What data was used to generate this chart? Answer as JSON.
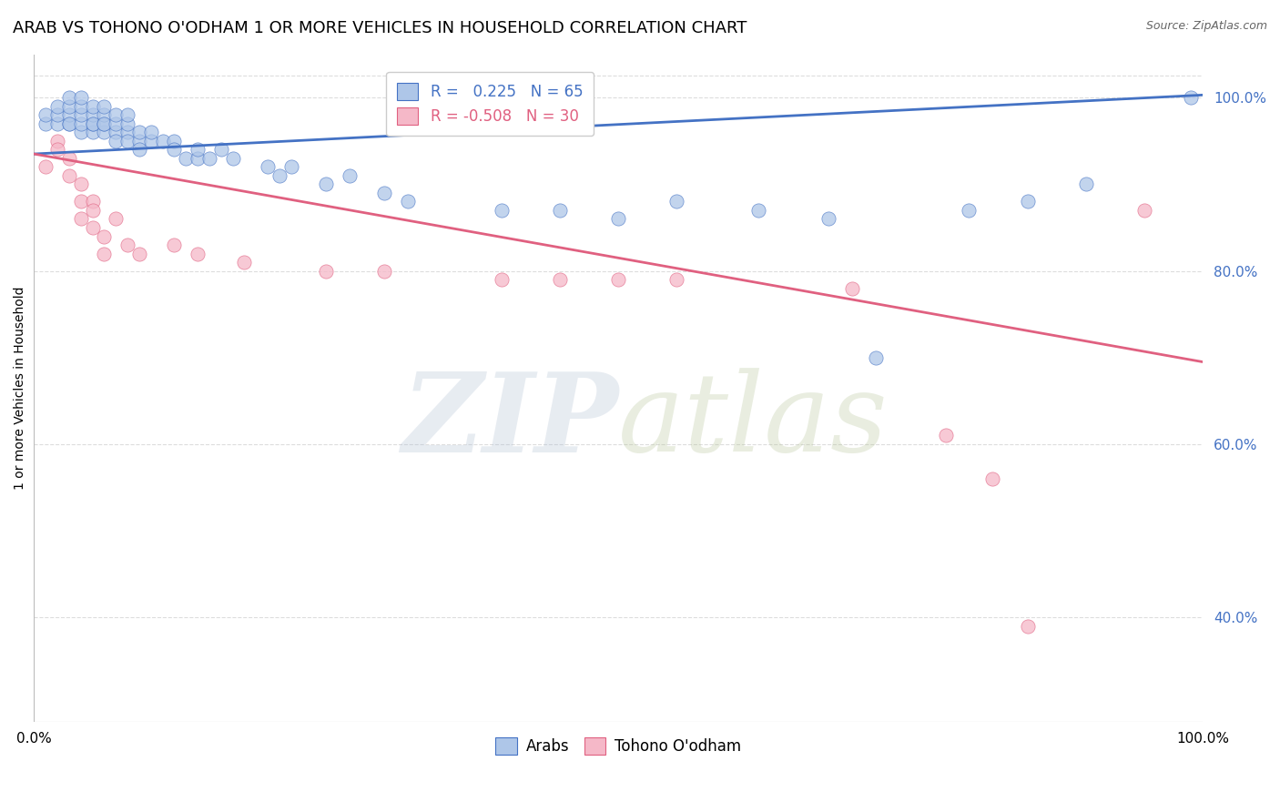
{
  "title": "ARAB VS TOHONO O'ODHAM 1 OR MORE VEHICLES IN HOUSEHOLD CORRELATION CHART",
  "source": "Source: ZipAtlas.com",
  "ylabel": "1 or more Vehicles in Household",
  "xlim": [
    0,
    1
  ],
  "ylim": [
    0.28,
    1.05
  ],
  "ytick_labels": [
    "40.0%",
    "60.0%",
    "80.0%",
    "100.0%"
  ],
  "ytick_values": [
    0.4,
    0.6,
    0.8,
    1.0
  ],
  "legend_r_arab": "R =   0.225",
  "legend_n_arab": "N = 65",
  "legend_r_tohono": "R = -0.508",
  "legend_n_tohono": "N = 30",
  "arab_color": "#aec6e8",
  "tohono_color": "#f5b8c8",
  "arab_line_color": "#4472c4",
  "tohono_line_color": "#e06080",
  "arab_scatter_x": [
    0.01,
    0.01,
    0.02,
    0.02,
    0.02,
    0.03,
    0.03,
    0.03,
    0.03,
    0.03,
    0.04,
    0.04,
    0.04,
    0.04,
    0.04,
    0.05,
    0.05,
    0.05,
    0.05,
    0.05,
    0.06,
    0.06,
    0.06,
    0.06,
    0.06,
    0.07,
    0.07,
    0.07,
    0.07,
    0.08,
    0.08,
    0.08,
    0.08,
    0.09,
    0.09,
    0.09,
    0.1,
    0.1,
    0.11,
    0.12,
    0.12,
    0.13,
    0.14,
    0.14,
    0.15,
    0.16,
    0.17,
    0.2,
    0.21,
    0.22,
    0.25,
    0.27,
    0.3,
    0.32,
    0.4,
    0.45,
    0.5,
    0.55,
    0.62,
    0.68,
    0.72,
    0.8,
    0.85,
    0.9,
    0.99
  ],
  "arab_scatter_y": [
    0.97,
    0.98,
    0.97,
    0.98,
    0.99,
    0.97,
    0.98,
    0.97,
    0.99,
    1.0,
    0.96,
    0.97,
    0.98,
    0.99,
    1.0,
    0.96,
    0.97,
    0.98,
    0.97,
    0.99,
    0.96,
    0.97,
    0.98,
    0.99,
    0.97,
    0.96,
    0.97,
    0.98,
    0.95,
    0.96,
    0.97,
    0.98,
    0.95,
    0.95,
    0.96,
    0.94,
    0.95,
    0.96,
    0.95,
    0.95,
    0.94,
    0.93,
    0.93,
    0.94,
    0.93,
    0.94,
    0.93,
    0.92,
    0.91,
    0.92,
    0.9,
    0.91,
    0.89,
    0.88,
    0.87,
    0.87,
    0.86,
    0.88,
    0.87,
    0.86,
    0.7,
    0.87,
    0.88,
    0.9,
    1.0
  ],
  "tohono_scatter_x": [
    0.01,
    0.02,
    0.02,
    0.03,
    0.03,
    0.04,
    0.04,
    0.04,
    0.05,
    0.05,
    0.05,
    0.06,
    0.06,
    0.07,
    0.08,
    0.09,
    0.12,
    0.14,
    0.18,
    0.25,
    0.3,
    0.4,
    0.45,
    0.5,
    0.55,
    0.7,
    0.78,
    0.82,
    0.85,
    0.95
  ],
  "tohono_scatter_y": [
    0.92,
    0.95,
    0.94,
    0.93,
    0.91,
    0.9,
    0.88,
    0.86,
    0.88,
    0.85,
    0.87,
    0.84,
    0.82,
    0.86,
    0.83,
    0.82,
    0.83,
    0.82,
    0.81,
    0.8,
    0.8,
    0.79,
    0.79,
    0.79,
    0.79,
    0.78,
    0.61,
    0.56,
    0.39,
    0.87
  ],
  "arab_line_x": [
    0.0,
    1.0
  ],
  "arab_line_y": [
    0.935,
    1.003
  ],
  "tohono_line_x": [
    0.0,
    1.0
  ],
  "tohono_line_y": [
    0.935,
    0.695
  ],
  "background_color": "#ffffff",
  "grid_color": "#dddddd",
  "title_fontsize": 13,
  "tick_fontsize": 11,
  "legend_fontsize": 12
}
